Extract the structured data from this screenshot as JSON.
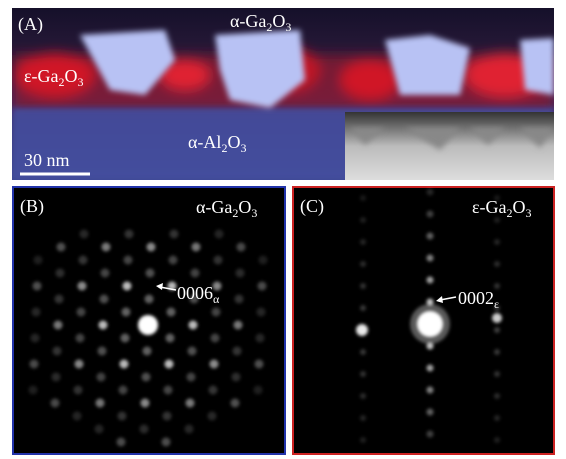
{
  "panel_a": {
    "label": "(A)",
    "alpha_ga2o3": [
      "α-Ga",
      "2",
      "O",
      "3"
    ],
    "epsilon_ga2o3": [
      "ε-Ga",
      "2",
      "O",
      "3"
    ],
    "alpha_al2o3": [
      "α-Al",
      "2",
      "O",
      "3"
    ],
    "scale_bar": "30 nm"
  },
  "panel_b": {
    "label": "(B)",
    "phase": [
      "α-Ga",
      "2",
      "O",
      "3"
    ],
    "spot_label": [
      "0006",
      "α"
    ]
  },
  "panel_c": {
    "label": "(C)",
    "phase": [
      "ε-Ga",
      "2",
      "O",
      "3"
    ],
    "spot_label": [
      "0002",
      "ε"
    ]
  }
}
